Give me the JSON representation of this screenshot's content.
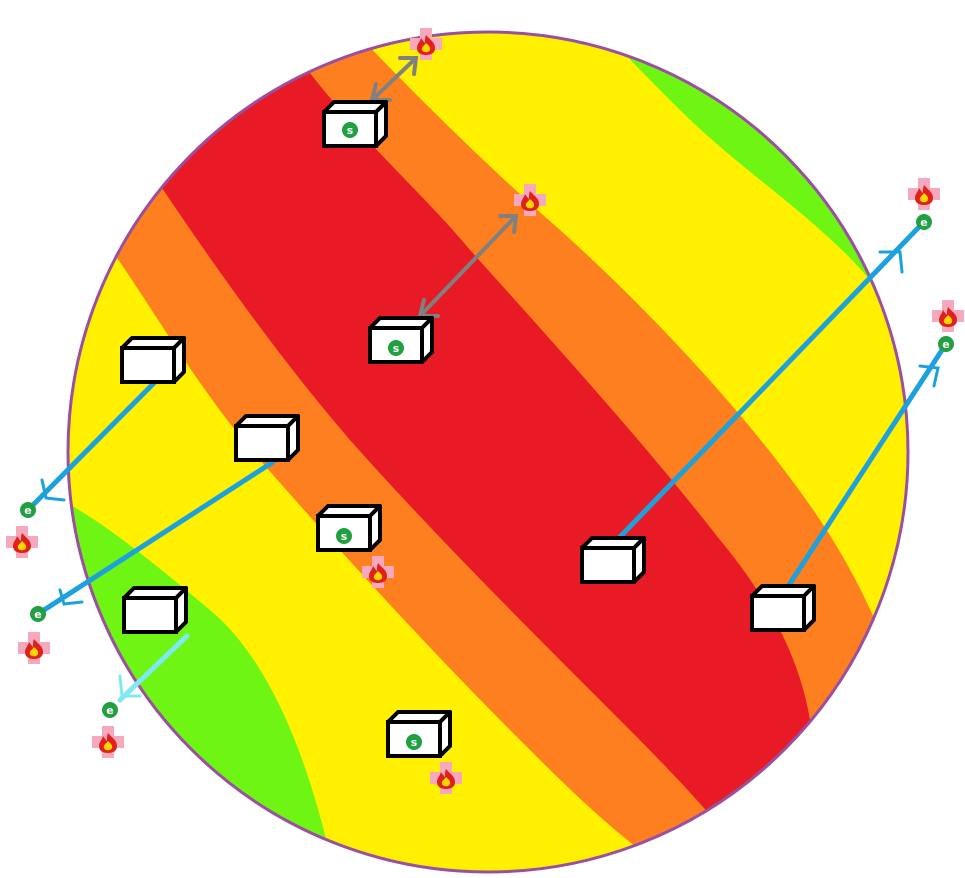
{
  "colors": {
    "background": "#ffffff",
    "zone_safe": "#6ef514",
    "zone_low": "#fff100",
    "zone_medium": "#fd7f1f",
    "zone_high": "#e71a25",
    "border": "#9b4fa0",
    "arrow_blue": "#1ca1dd",
    "arrow_gray": "#808080",
    "arrow_light": "#7fe8f5",
    "marker_green": "#20a040",
    "fire_badge": "#f6a9bd",
    "fire": "#e0201a"
  },
  "labels": {
    "device_letter": "s",
    "endpoint_letter": "e"
  },
  "icons": {
    "box": "box-icon",
    "fire": "fire-icon",
    "endpoint": "endpoint-marker-icon"
  }
}
